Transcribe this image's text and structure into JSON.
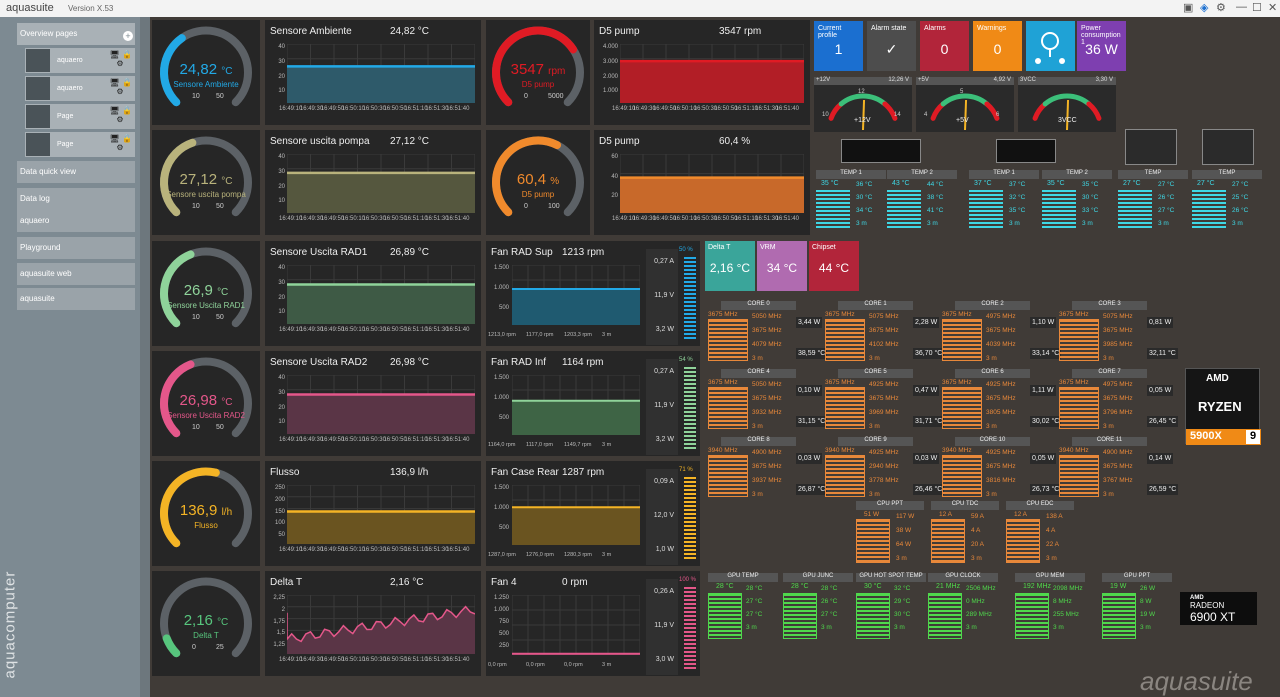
{
  "app": {
    "title": "aquasuite",
    "version": "Version X.53",
    "watermark": "aquasuite",
    "brand_vertical": "aquacomputer"
  },
  "sidebar": {
    "overview": "Overview pages",
    "pages": [
      "aquaero",
      "aquaero",
      "Page",
      "Page"
    ],
    "items": [
      "Data quick view",
      "Data log",
      "aquaero",
      "Playground",
      "aquasuite web",
      "aquasuite"
    ]
  },
  "gauges": [
    {
      "value": "24,82",
      "unit": "°C",
      "name": "Sensore Ambiente",
      "min": "10",
      "max": "50",
      "color": "#22a9e6",
      "level": 0.37
    },
    {
      "value": "27,12",
      "unit": "°C",
      "name": "Sensore uscita pompa",
      "min": "10",
      "max": "50",
      "color": "#b9b37c",
      "level": 0.43
    },
    {
      "value": "26,9",
      "unit": "°C",
      "name": "Sensore Uscita RAD1",
      "min": "10",
      "max": "50",
      "color": "#8fd39a",
      "level": 0.42
    },
    {
      "value": "26,98",
      "unit": "°C",
      "name": "Sensore Uscita RAD2",
      "min": "10",
      "max": "50",
      "color": "#e4578a",
      "level": 0.42
    },
    {
      "value": "136,9",
      "unit": "l/h",
      "name": "Flusso",
      "min": "",
      "max": "",
      "color": "#f4b425",
      "level": 0.55
    },
    {
      "value": "2,16",
      "unit": "°C",
      "name": "Delta T",
      "min": "0",
      "max": "25",
      "color": "#57c57d",
      "level": 0.09
    }
  ],
  "charts": [
    {
      "title": "Sensore Ambiente",
      "value": "24,82 °C",
      "ticks": [
        "40",
        "30",
        "20",
        "10"
      ],
      "color": "#22a9e6",
      "fill": "#2e5a6a",
      "level": 0.62
    },
    {
      "title": "Sensore uscita pompa",
      "value": "27,12 °C",
      "ticks": [
        "40",
        "30",
        "20",
        "10"
      ],
      "color": "#b9b37c",
      "fill": "#55573e",
      "level": 0.68
    },
    {
      "title": "Sensore Uscita RAD1",
      "value": "26,89 °C",
      "ticks": [
        "40",
        "30",
        "20",
        "10"
      ],
      "color": "#8fd39a",
      "fill": "#3e5a45",
      "level": 0.67
    },
    {
      "title": "Sensore Uscita RAD2",
      "value": "26,98 °C",
      "ticks": [
        "40",
        "30",
        "20",
        "10"
      ],
      "color": "#e4578a",
      "fill": "#5a3546",
      "level": 0.67
    },
    {
      "title": "Flusso",
      "value": "136,9 l/h",
      "ticks": [
        "250",
        "200",
        "150",
        "100",
        "50"
      ],
      "color": "#f4b425",
      "fill": "#6a5420",
      "level": 0.55
    },
    {
      "title": "Delta T",
      "value": "2,16 °C",
      "ticks": [
        "2,25",
        "2",
        "1,75",
        "1,5",
        "1,25"
      ],
      "color": "#e4578a",
      "fill": "#5a3546",
      "level": 0.7
    }
  ],
  "time_labels": [
    "16:49:10",
    "16:49:30",
    "16:49:50",
    "16:50:10",
    "16:50:30",
    "16:50:50",
    "16:51:10",
    "16:51:30",
    "16:51:40"
  ],
  "pumps": [
    {
      "value": "3547",
      "unit": "rpm",
      "name": "D5 pump",
      "min": "0",
      "max": "5000",
      "color": "#e01b24",
      "level": 0.71,
      "title": "D5 pump",
      "reading": "3547 rpm",
      "ticks": [
        "4.000",
        "3.000",
        "2.000",
        "1.000"
      ],
      "fill": "#b21e26"
    },
    {
      "value": "60,4",
      "unit": "%",
      "name": "D5 pump",
      "min": "0",
      "max": "100",
      "color": "#f08a2c",
      "level": 0.6,
      "title": "D5 pump",
      "reading": "60,4 %",
      "ticks": [
        "60",
        "40",
        "20"
      ],
      "fill": "#c8692a"
    }
  ],
  "fans": [
    {
      "title": "Fan RAD Sup",
      "rpm": "1213 rpm",
      "ticks": [
        "1.500",
        "1.000",
        "500"
      ],
      "amp": "0,27 A",
      "volt": "11,9 V",
      "watt": "3,2 W",
      "pct": "50 %",
      "color": "#22a9e6",
      "fill": "#1f5a70",
      "level": 0.6,
      "foot": [
        "1213,0 rpm",
        "1177,0 rpm",
        "1203,3 rpm",
        "3 m"
      ]
    },
    {
      "title": "Fan RAD Inf",
      "rpm": "1164 rpm",
      "ticks": [
        "1.500",
        "1.000",
        "500"
      ],
      "amp": "0,27 A",
      "volt": "11,9 V",
      "watt": "3,2 W",
      "pct": "54 %",
      "color": "#8fd39a",
      "fill": "#3e6445",
      "level": 0.57,
      "foot": [
        "1164,0 rpm",
        "1117,0 rpm",
        "1149,7 rpm",
        "3 m"
      ]
    },
    {
      "title": "Fan Case Rear",
      "rpm": "1287 rpm",
      "ticks": [
        "1.500",
        "1.000",
        "500"
      ],
      "amp": "0,09 A",
      "volt": "12,0 V",
      "watt": "1,0 W",
      "pct": "71 %",
      "color": "#f4b425",
      "fill": "#6a5420",
      "level": 0.63,
      "foot": [
        "1287,0 rpm",
        "1276,0 rpm",
        "1280,3 rpm",
        "3 m"
      ]
    },
    {
      "title": "Fan 4",
      "rpm": "0 rpm",
      "ticks": [
        "1.250",
        "1.000",
        "750",
        "500",
        "250"
      ],
      "amp": "0,26 A",
      "volt": "11,9 V",
      "watt": "3,0 W",
      "pct": "100 %",
      "color": "#e4578a",
      "fill": "#5a3546",
      "level": 0.02,
      "foot": [
        "0,0 rpm",
        "0,0 rpm",
        "0,0 rpm",
        "3 m"
      ]
    }
  ],
  "tiles": [
    {
      "label": "Current profile",
      "value": "1",
      "color": "#1b6fd0"
    },
    {
      "label": "Alarm state",
      "value": "✓",
      "color": "#4d4d4d"
    },
    {
      "label": "Alarms",
      "value": "0",
      "color": "#b2253a"
    },
    {
      "label": "Warnings",
      "value": "0",
      "color": "#f08a16"
    },
    {
      "label": "",
      "value": "",
      "color": "#1fa2d6"
    },
    {
      "label": "Power consumption 1",
      "value": "36 W",
      "color": "#7e3fb0"
    }
  ],
  "volts": [
    {
      "name": "+12V",
      "value": "12,26 V",
      "needle": "+12V",
      "ticks": [
        "10",
        "12",
        "14"
      ]
    },
    {
      "name": "+5V",
      "value": "4,92 V",
      "needle": "+5V",
      "ticks": [
        "4",
        "5",
        "6"
      ]
    },
    {
      "name": "3VCC",
      "value": "3,30 V",
      "needle": "3VCC",
      "ticks": [
        "",
        "",
        ""
      ]
    }
  ],
  "temps": [
    {
      "name": "TEMP 1",
      "cur": "35 °C",
      "max": "36 °C",
      "min": "30 °C",
      "avg": "34 °C",
      "t": "3 m"
    },
    {
      "name": "TEMP 2",
      "cur": "43 °C",
      "max": "44 °C",
      "min": "38 °C",
      "avg": "41 °C",
      "t": "3 m"
    },
    {
      "name": "TEMP 1",
      "cur": "37 °C",
      "max": "37 °C",
      "min": "32 °C",
      "avg": "35 °C",
      "t": "3 m"
    },
    {
      "name": "TEMP 2",
      "cur": "35 °C",
      "max": "35 °C",
      "min": "30 °C",
      "avg": "33 °C",
      "t": "3 m"
    },
    {
      "name": "TEMP",
      "cur": "27 °C",
      "max": "27 °C",
      "min": "26 °C",
      "avg": "27 °C",
      "t": "3 m"
    },
    {
      "name": "TEMP",
      "cur": "27 °C",
      "max": "27 °C",
      "min": "25 °C",
      "avg": "26 °C",
      "t": "3 m"
    }
  ],
  "mb": [
    {
      "name": "Delta T",
      "value": "2,16 °C",
      "color": "#3aa59a"
    },
    {
      "name": "VRM",
      "value": "34 °C",
      "color": "#b06bb0"
    },
    {
      "name": "Chipset",
      "value": "44 °C",
      "color": "#b2253a"
    }
  ],
  "cores": [
    {
      "name": "CORE 0",
      "mhz": "3675 MHz",
      "a": "5050 MHz",
      "b": "3675 MHz",
      "c": "4079 MHz",
      "t": "3 m",
      "w": "3,44 W",
      "tc": "38,59 °C"
    },
    {
      "name": "CORE 1",
      "mhz": "3675 MHz",
      "a": "5075 MHz",
      "b": "3675 MHz",
      "c": "4102 MHz",
      "t": "3 m",
      "w": "2,28 W",
      "tc": "36,70 °C"
    },
    {
      "name": "CORE 2",
      "mhz": "3675 MHz",
      "a": "4975 MHz",
      "b": "3675 MHz",
      "c": "4039 MHz",
      "t": "3 m",
      "w": "1,10 W",
      "tc": "33,14 °C"
    },
    {
      "name": "CORE 3",
      "mhz": "3675 MHz",
      "a": "5075 MHz",
      "b": "3675 MHz",
      "c": "3985 MHz",
      "t": "3 m",
      "w": "0,81 W",
      "tc": "32,11 °C"
    },
    {
      "name": "CORE 4",
      "mhz": "3675 MHz",
      "a": "5050 MHz",
      "b": "3675 MHz",
      "c": "3932 MHz",
      "t": "3 m",
      "w": "0,10 W",
      "tc": "31,15 °C"
    },
    {
      "name": "CORE 5",
      "mhz": "3675 MHz",
      "a": "4925 MHz",
      "b": "3675 MHz",
      "c": "3969 MHz",
      "t": "3 m",
      "w": "0,47 W",
      "tc": "31,71 °C"
    },
    {
      "name": "CORE 6",
      "mhz": "3675 MHz",
      "a": "4925 MHz",
      "b": "3675 MHz",
      "c": "3805 MHz",
      "t": "3 m",
      "w": "1,11 W",
      "tc": "30,02 °C"
    },
    {
      "name": "CORE 7",
      "mhz": "3675 MHz",
      "a": "4975 MHz",
      "b": "3675 MHz",
      "c": "3796 MHz",
      "t": "3 m",
      "w": "0,05 W",
      "tc": "26,45 °C"
    },
    {
      "name": "CORE 8",
      "mhz": "3940 MHz",
      "a": "4900 MHz",
      "b": "3675 MHz",
      "c": "3937 MHz",
      "t": "3 m",
      "w": "0,03 W",
      "tc": "26,87 °C"
    },
    {
      "name": "CORE 9",
      "mhz": "3940 MHz",
      "a": "4925 MHz",
      "b": "2940 MHz",
      "c": "3778 MHz",
      "t": "3 m",
      "w": "0,03 W",
      "tc": "26,46 °C"
    },
    {
      "name": "CORE 10",
      "mhz": "3940 MHz",
      "a": "4925 MHz",
      "b": "3675 MHz",
      "c": "3816 MHz",
      "t": "3 m",
      "w": "0,05 W",
      "tc": "26,73 °C"
    },
    {
      "name": "CORE 11",
      "mhz": "3940 MHz",
      "a": "4900 MHz",
      "b": "3675 MHz",
      "c": "3767 MHz",
      "t": "3 m",
      "w": "0,14 W",
      "tc": "26,59 °C"
    }
  ],
  "cpu_limits": [
    {
      "name": "CPU PPT",
      "cur": "51 W",
      "a": "117 W",
      "b": "38 W",
      "c": "64 W",
      "t": "3 m"
    },
    {
      "name": "CPU TDC",
      "cur": "12 A",
      "a": "59 A",
      "b": "4 A",
      "c": "20 A",
      "t": "3 m"
    },
    {
      "name": "CPU EDC",
      "cur": "12 A",
      "a": "138 A",
      "b": "4 A",
      "c": "22 A",
      "t": "3 m"
    }
  ],
  "gpu": [
    {
      "name": "GPU TEMP",
      "cur": "28 °C",
      "a": "28 °C",
      "b": "27 °C",
      "c": "27 °C",
      "t": "3 m"
    },
    {
      "name": "GPU JUNC",
      "cur": "28 °C",
      "a": "28 °C",
      "b": "26 °C",
      "c": "27 °C",
      "t": "3 m"
    },
    {
      "name": "GPU HOT SPOT TEMP",
      "cur": "30 °C",
      "a": "32 °C",
      "b": "29 °C",
      "c": "30 °C",
      "t": "3 m"
    },
    {
      "name": "GPU CLOCK",
      "cur": "21 MHz",
      "a": "2506 MHz",
      "b": "0 MHz",
      "c": "289 MHz",
      "t": "3 m"
    },
    {
      "name": "GPU MEM",
      "cur": "192 MHz",
      "a": "2098 MHz",
      "b": "8 MHz",
      "c": "255 MHz",
      "t": "3 m"
    },
    {
      "name": "GPU PPT",
      "cur": "19 W",
      "a": "26 W",
      "b": "8 W",
      "c": "19 W",
      "t": "3 m"
    }
  ],
  "logos": {
    "amd": "AMD",
    "ryzen": "RYZEN",
    "ryzen_num": "9",
    "ryzen_model": "5900X",
    "radeon_amd": "AMD",
    "radeon": "RADEON",
    "radeon_model": "6900 XT"
  }
}
